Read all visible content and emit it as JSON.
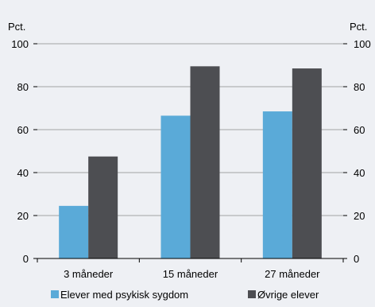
{
  "chart_data": {
    "type": "bar",
    "categories": [
      "3 måneder",
      "15 måneder",
      "27 måneder"
    ],
    "series": [
      {
        "name": "Elever med psykisk sygdom",
        "values": [
          24.5,
          66.5,
          68.5
        ],
        "color": "#5aaad8"
      },
      {
        "name": "Øvrige elever",
        "values": [
          47.5,
          89.5,
          88.5
        ],
        "color": "#4d4e52"
      }
    ],
    "y_unit_left": "Pct.",
    "y_unit_right": "Pct.",
    "ylim": [
      0,
      100
    ],
    "yticks": [
      0,
      20,
      40,
      60,
      80,
      100
    ],
    "grid": true,
    "legend_position": "bottom"
  },
  "colors": {
    "background": "#eef0f4",
    "gridline": "#8a8a8a",
    "axis": "#000000"
  }
}
